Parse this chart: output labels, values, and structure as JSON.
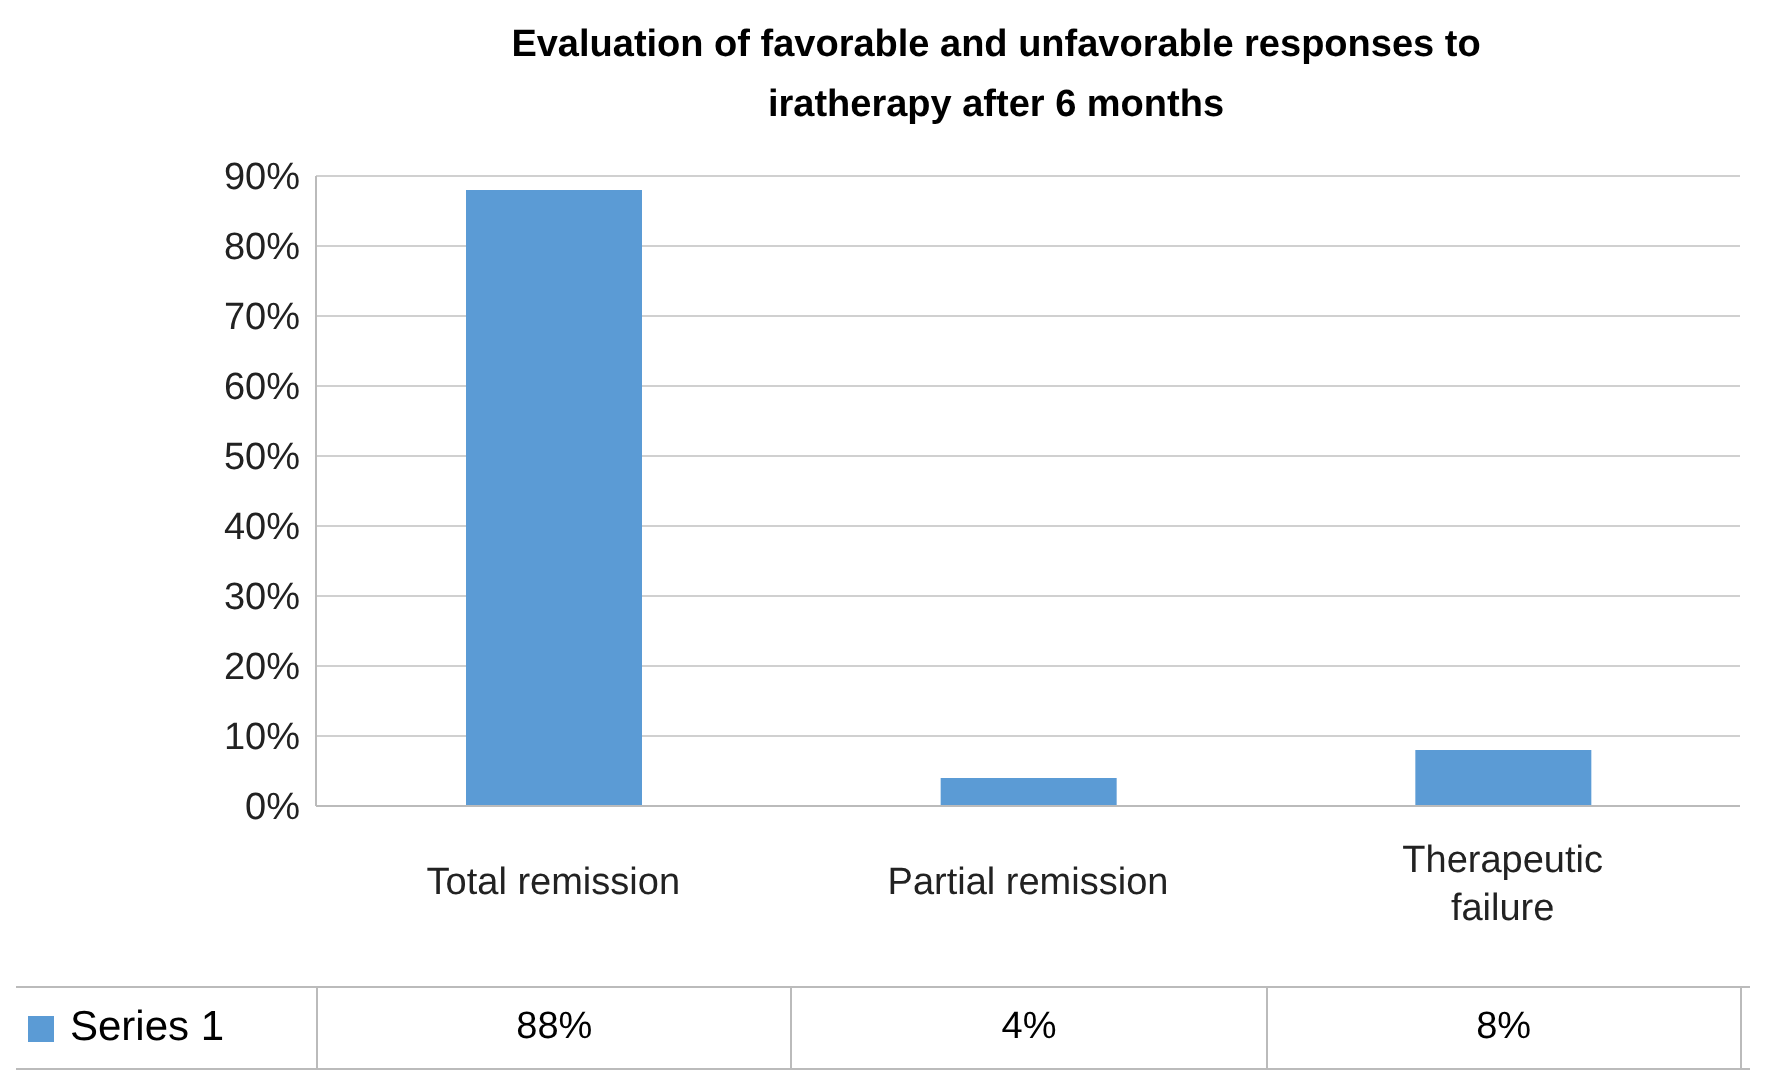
{
  "chart_data": {
    "type": "bar",
    "title": "Evaluation of favorable and unfavorable responses to iratherapy after 6 months",
    "categories": [
      "Total remission",
      "Partial remission",
      "Therapeutic failure"
    ],
    "series": [
      {
        "name": "Series 1",
        "color": "#5b9bd5",
        "values": [
          88,
          4,
          8
        ],
        "value_labels": [
          "88%",
          "4%",
          "8%"
        ]
      }
    ],
    "ylim": [
      0,
      90
    ],
    "yticks": [
      {
        "value": 0,
        "label": "0%"
      },
      {
        "value": 10,
        "label": "10%"
      },
      {
        "value": 20,
        "label": "20%"
      },
      {
        "value": 30,
        "label": "30%"
      },
      {
        "value": 40,
        "label": "40%"
      },
      {
        "value": 50,
        "label": "50%"
      },
      {
        "value": 60,
        "label": "60%"
      },
      {
        "value": 70,
        "label": "70%"
      },
      {
        "value": 80,
        "label": "80%"
      },
      {
        "value": 90,
        "label": "90%"
      }
    ],
    "grid": "y",
    "legend": "bottom left"
  }
}
